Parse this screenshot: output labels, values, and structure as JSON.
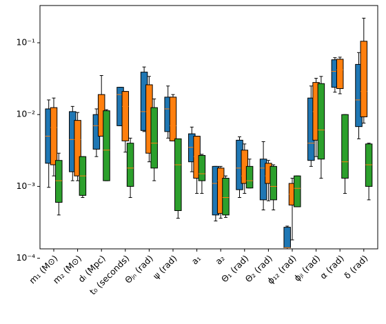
{
  "chart_data": {
    "type": "box",
    "log_y": true,
    "categories": [
      "m₁ (M⊙)",
      "m₂ (M⊙)",
      "dₗ (Mpc)",
      "t₀ (seconds)",
      "Θⱼₙ (rad)",
      "ψ (rad)",
      "a₁",
      "a₂",
      "Θ₁ (rad)",
      "Θ₂ (rad)",
      "ϕ₁₂ (rad)",
      "ϕⱼₗ (rad)",
      "α (rad)",
      "δ (rad)"
    ],
    "ylim": [
      0.000135,
      0.33
    ],
    "yticks": [
      {
        "value": 0.0001,
        "label": "10⁻⁴"
      },
      {
        "value": 0.001,
        "label": "10⁻³"
      },
      {
        "value": 0.01,
        "label": "10⁻²"
      },
      {
        "value": 0.1,
        "label": "10⁻¹"
      }
    ],
    "median_color": "#ff7f0e",
    "series": [
      {
        "color": "#1f77b4",
        "whislo": [
          0.00097,
          0.0012,
          0.0026,
          0.007,
          0.0058,
          0.0047,
          0.0016,
          0.00033,
          0.0007,
          0.00047,
          0.000135,
          0.0019,
          0.0205,
          0.0046
        ],
        "q1": [
          0.0021,
          0.0016,
          0.0033,
          0.007,
          0.006,
          0.0058,
          0.0022,
          0.0004,
          0.0009,
          0.00065,
          0.00014,
          0.0023,
          0.024,
          0.0068
        ],
        "med": [
          0.005,
          0.0045,
          0.007,
          0.019,
          0.011,
          0.012,
          0.0035,
          0.0011,
          0.0018,
          0.0018,
          0.00014,
          0.004,
          0.04,
          0.016
        ],
        "q3": [
          0.012,
          0.011,
          0.01,
          0.024,
          0.039,
          0.0175,
          0.0054,
          0.0019,
          0.0044,
          0.0024,
          0.00027,
          0.017,
          0.058,
          0.05
        ],
        "whishi": [
          0.016,
          0.013,
          0.012,
          0.024,
          0.046,
          0.025,
          0.0067,
          0.0019,
          0.0049,
          0.0042,
          0.00028,
          0.025,
          0.062,
          0.073
        ]
      },
      {
        "color": "#ff7f0e",
        "whislo": [
          0.0014,
          0.0012,
          0.005,
          0.003,
          0.0022,
          0.0043,
          0.0008,
          0.00036,
          0.0008,
          0.00063,
          0.00018,
          0.0026,
          0.0195,
          0.0076
        ],
        "q1": [
          0.002,
          0.0014,
          0.005,
          0.0043,
          0.0029,
          0.0043,
          0.0013,
          0.00042,
          0.0011,
          0.0011,
          0.00055,
          0.0044,
          0.023,
          0.0093
        ],
        "med": [
          0.0066,
          0.0045,
          0.007,
          0.013,
          0.011,
          0.007,
          0.0026,
          0.0012,
          0.0014,
          0.0014,
          0.00078,
          0.011,
          0.042,
          0.021
        ],
        "q3": [
          0.0125,
          0.0083,
          0.019,
          0.021,
          0.026,
          0.0175,
          0.005,
          0.0018,
          0.0032,
          0.0021,
          0.0011,
          0.028,
          0.059,
          0.105
        ],
        "whishi": [
          0.017,
          0.0107,
          0.035,
          0.021,
          0.034,
          0.019,
          0.005,
          0.0019,
          0.0039,
          0.0023,
          0.0013,
          0.032,
          0.063,
          0.22
        ]
      },
      {
        "color": "#2ca02c",
        "whislo": [
          0.0004,
          0.0007,
          0.0012,
          0.0007,
          0.0012,
          0.00036,
          0.0008,
          0.00037,
          0.00095,
          0.00047,
          0.00052,
          0.0013,
          0.0008,
          0.00065
        ],
        "q1": [
          0.0006,
          0.00075,
          0.0012,
          0.001,
          0.0018,
          0.00046,
          0.0012,
          0.0004,
          0.00095,
          0.00065,
          0.00052,
          0.0024,
          0.0013,
          0.001
        ],
        "med": [
          0.0012,
          0.0014,
          0.0032,
          0.0018,
          0.004,
          0.002,
          0.0015,
          0.0007,
          0.0012,
          0.001,
          0.00094,
          0.0061,
          0.0022,
          0.002
        ],
        "q3": [
          0.0023,
          0.0026,
          0.0113,
          0.004,
          0.0125,
          0.0046,
          0.0027,
          0.0013,
          0.0019,
          0.0019,
          0.0014,
          0.027,
          0.01,
          0.0039
        ],
        "whishi": [
          0.0029,
          0.0026,
          0.0117,
          0.0047,
          0.0165,
          0.0045,
          0.0028,
          0.0014,
          0.0024,
          0.002,
          0.0014,
          0.034,
          0.01,
          0.004
        ]
      }
    ]
  }
}
